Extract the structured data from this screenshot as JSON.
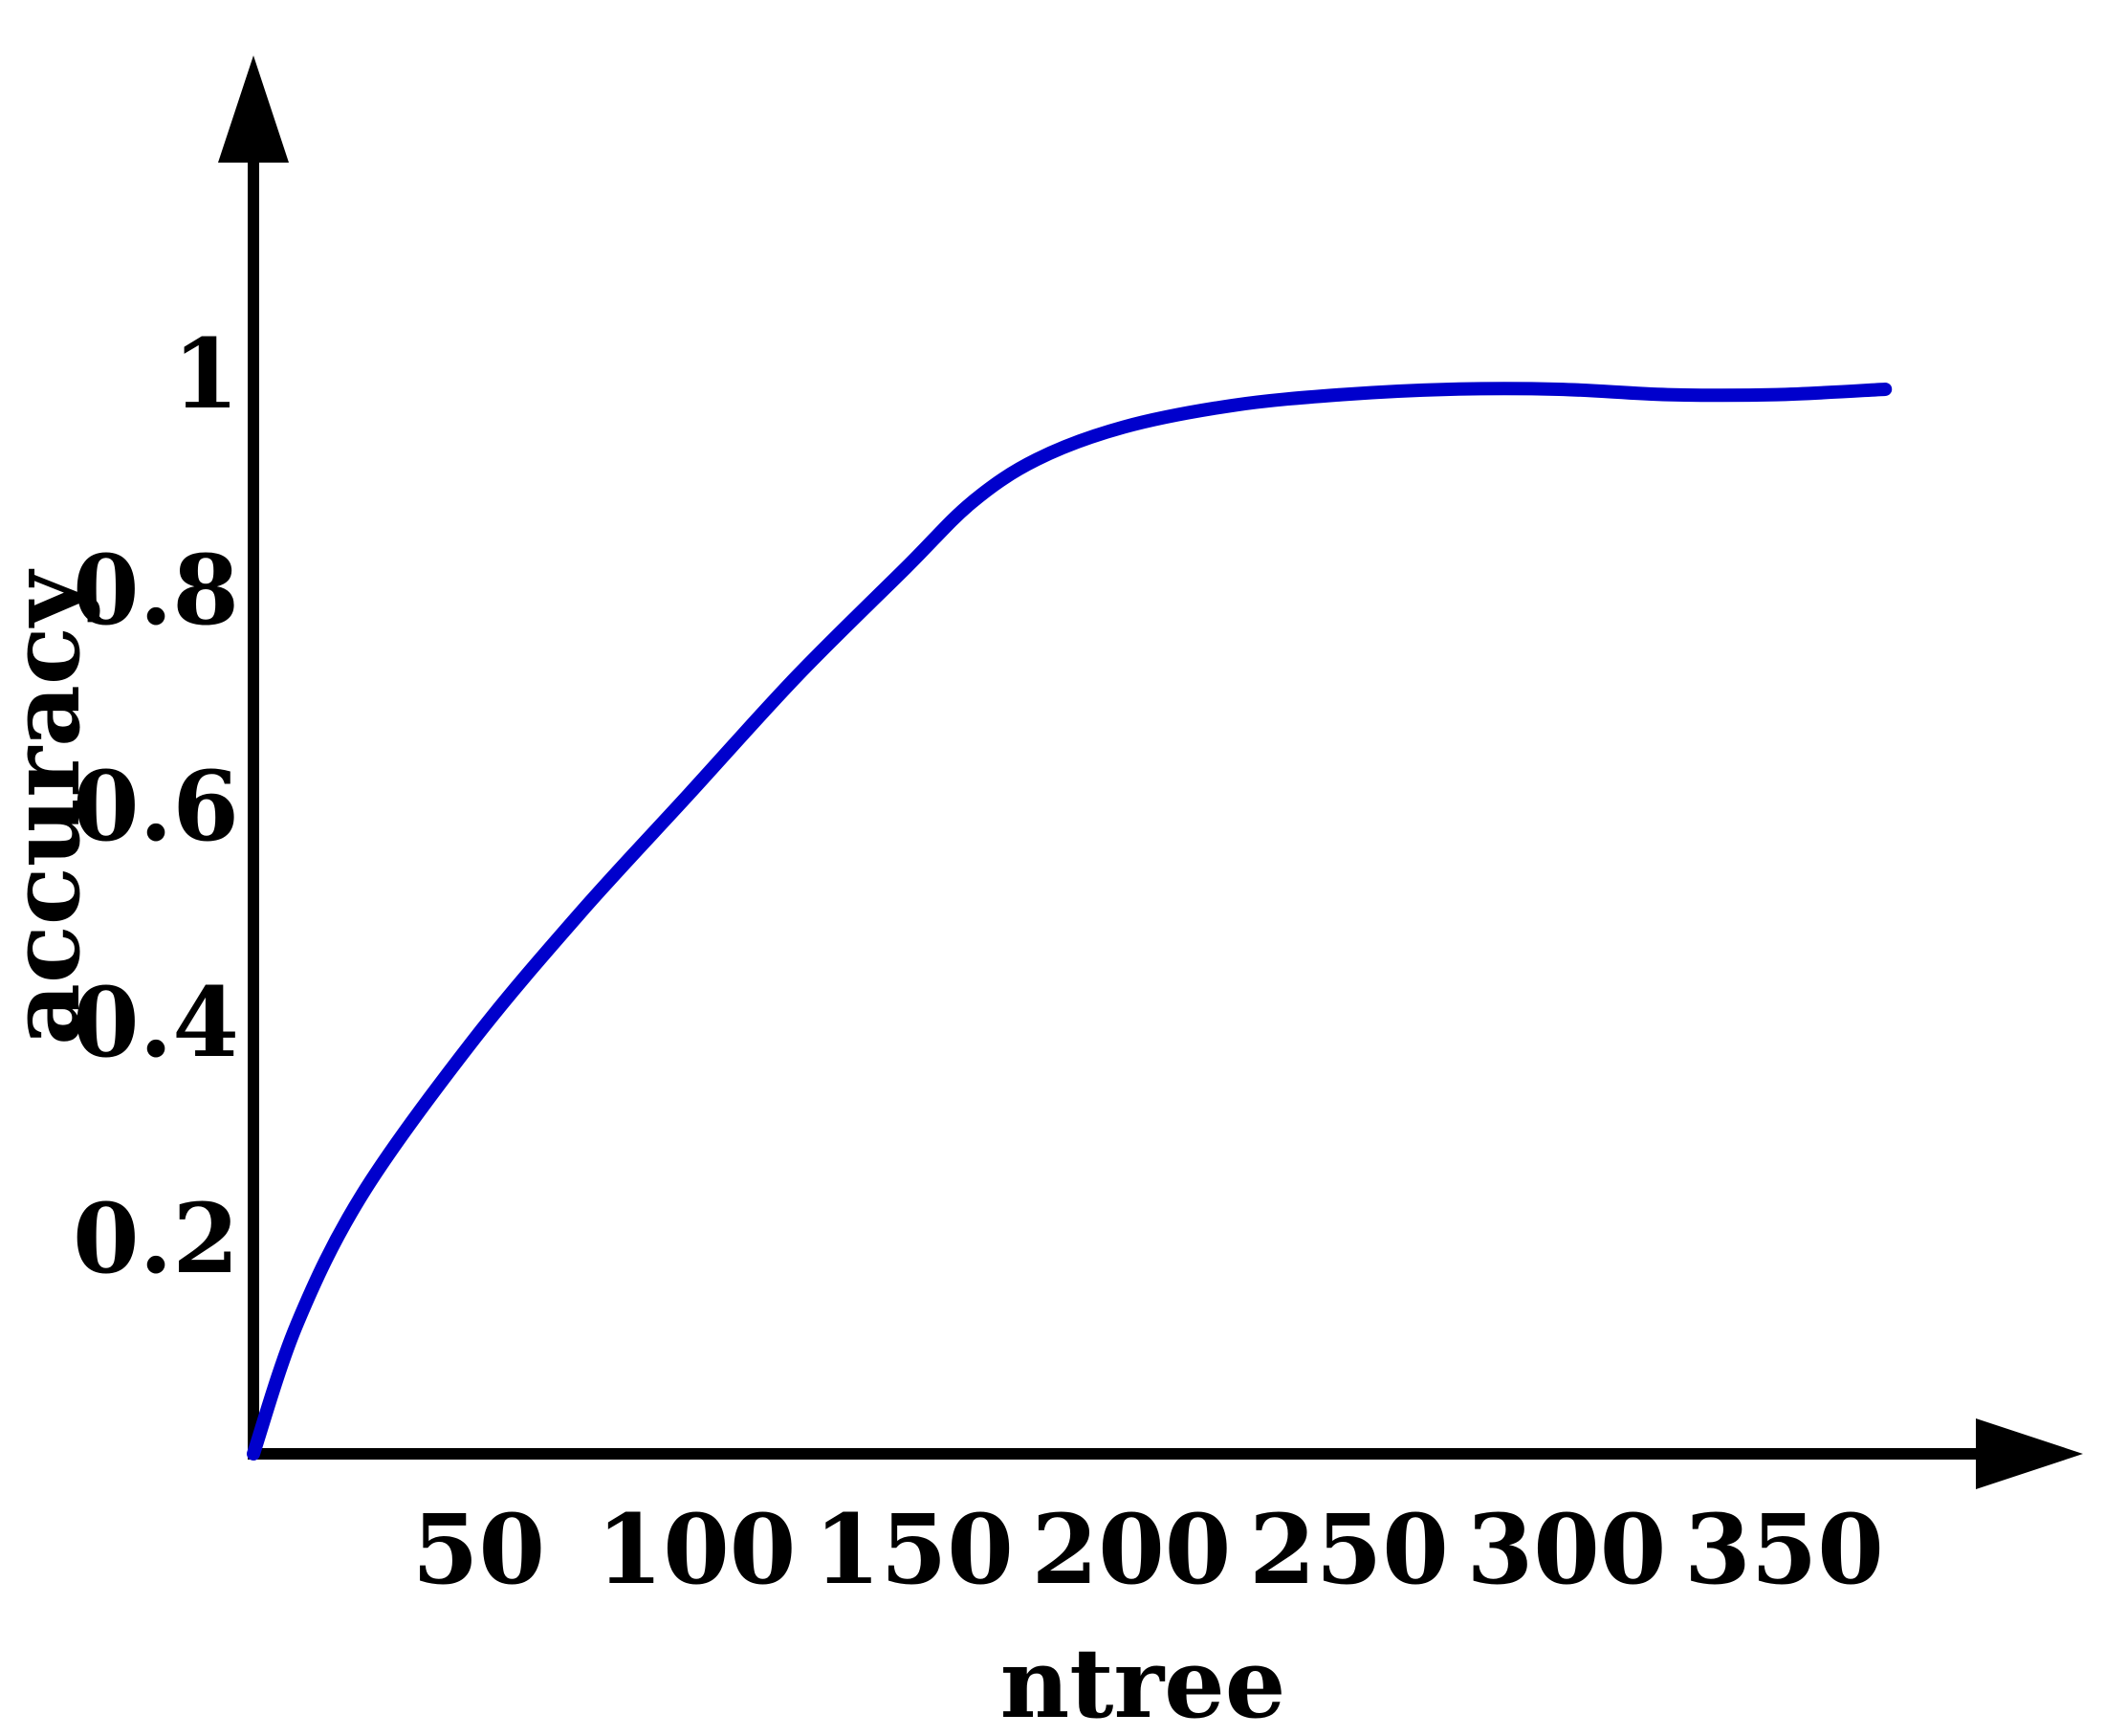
{
  "chart_data": {
    "type": "line",
    "title": "",
    "xlabel": "ntree",
    "ylabel": "accuracy",
    "xlim": [
      0,
      420
    ],
    "ylim": [
      0,
      1.2
    ],
    "grid": false,
    "x_ticks": [
      50,
      100,
      150,
      200,
      250,
      300,
      350
    ],
    "x_tick_labels": [
      "50",
      "100",
      "150",
      "200",
      "250",
      "300",
      "350"
    ],
    "y_ticks": [
      0.2,
      0.4,
      0.6,
      0.8,
      1
    ],
    "y_tick_labels": [
      "0.2",
      "0.4",
      "0.6",
      "0.8",
      "1"
    ],
    "series": [
      {
        "color": "#0000cc",
        "x": [
          0,
          10,
          25,
          50,
          75,
          100,
          125,
          150,
          165,
          180,
          200,
          225,
          250,
          275,
          300,
          325,
          350,
          375
        ],
        "y": [
          0,
          0.12,
          0.24,
          0.38,
          0.5,
          0.61,
          0.72,
          0.82,
          0.88,
          0.92,
          0.95,
          0.97,
          0.98,
          0.985,
          0.985,
          0.98,
          0.98,
          0.985
        ]
      }
    ]
  }
}
